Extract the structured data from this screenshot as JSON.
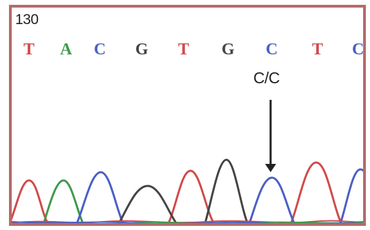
{
  "figure": {
    "position_label": "130",
    "bases": [
      {
        "letter": "T",
        "color": "#d14a4a"
      },
      {
        "letter": "A",
        "color": "#3f9a4a"
      },
      {
        "letter": "C",
        "color": "#4b5fc4"
      },
      {
        "letter": "G",
        "color": "#444444"
      },
      {
        "letter": "T",
        "color": "#d14a4a"
      },
      {
        "letter": "G",
        "color": "#444444"
      },
      {
        "letter": "C",
        "color": "#4b5fc4"
      },
      {
        "letter": "T",
        "color": "#d14a4a"
      },
      {
        "letter": "C",
        "color": "#4b5fc4"
      }
    ],
    "genotype_label": "C/C",
    "colors": {
      "frame": "#b66a6a",
      "trace_T": "#d14a4a",
      "trace_A": "#3f9a4a",
      "trace_C": "#4b5fc4",
      "trace_G": "#444444",
      "arrow": "#222222"
    }
  }
}
